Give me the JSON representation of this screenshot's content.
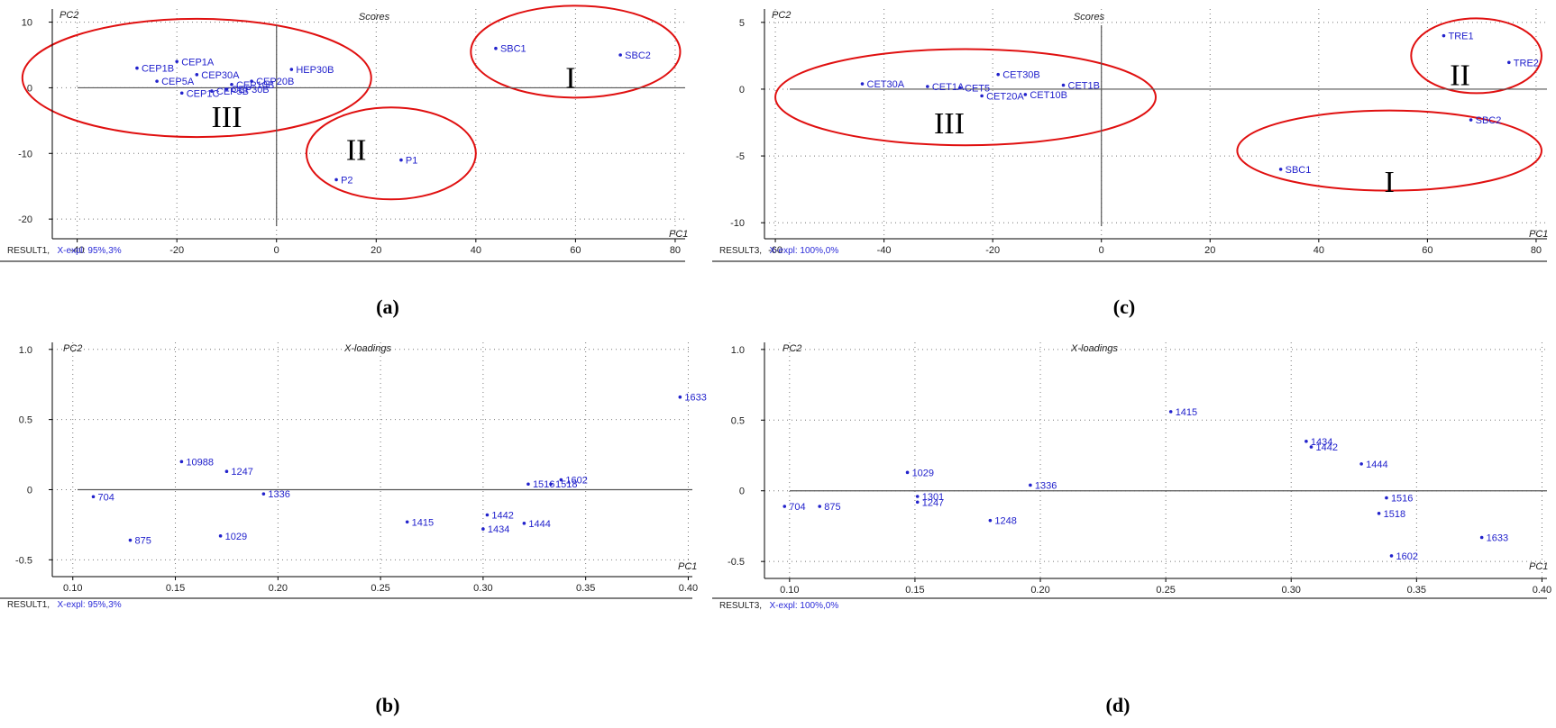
{
  "panels": [
    {
      "id": "a",
      "caption": "(a)",
      "title": "Scores",
      "ylabel": "PC2",
      "xlabel": "PC1",
      "footer_name": "RESULT1,",
      "footer_expl": "X-expl: 95%,3%",
      "colors": {
        "points": "#2222cc",
        "ellipse": "#e01010"
      }
    },
    {
      "id": "b",
      "caption": "(b)",
      "title": "X-loadings",
      "ylabel": "PC2",
      "xlabel": "PC1",
      "footer_name": "RESULT1,",
      "footer_expl": "X-expl: 95%,3%",
      "colors": {
        "points": "#2222cc"
      }
    },
    {
      "id": "c",
      "caption": "(c)",
      "title": "Scores",
      "ylabel": "PC2",
      "xlabel": "PC1",
      "footer_name": "RESULT3,",
      "footer_expl": "X-expl: 100%,0%",
      "colors": {
        "points": "#2222cc",
        "ellipse": "#e01010"
      }
    },
    {
      "id": "d",
      "caption": "(d)",
      "title": "X-loadings",
      "ylabel": "PC2",
      "xlabel": "PC1",
      "footer_name": "RESULT3,",
      "footer_expl": "X-expl: 100%,0%",
      "colors": {
        "points": "#2222cc"
      }
    }
  ],
  "chart_data": [
    {
      "panel": "a",
      "type": "scatter",
      "title": "Scores",
      "xlabel": "PC1",
      "ylabel": "PC2",
      "xlim": [
        -45,
        82
      ],
      "ylim": [
        -23,
        12
      ],
      "xticks": [
        -40,
        -20,
        0,
        20,
        40,
        60,
        80
      ],
      "xtick_labels": [
        "-40",
        "-20",
        "0",
        "20",
        "40",
        "60",
        "80"
      ],
      "yticks": [
        -20,
        -10,
        0,
        10
      ],
      "ytick_labels": [
        "-20",
        "-10",
        "0",
        "10"
      ],
      "grid": true,
      "points": [
        {
          "label": "CEP1B",
          "x": -28,
          "y": 3
        },
        {
          "label": "CEP5A",
          "x": -24,
          "y": 1
        },
        {
          "label": "CEP1A",
          "x": -20,
          "y": 4
        },
        {
          "label": "CEP30A",
          "x": -16,
          "y": 2
        },
        {
          "label": "CEP20B",
          "x": -5,
          "y": 1
        },
        {
          "label": "HEP30B",
          "x": 3,
          "y": 2.8
        },
        {
          "label": "CEP10B",
          "x": -9,
          "y": 0.5
        },
        {
          "label": "CEP1C",
          "x": -19,
          "y": -0.8
        },
        {
          "label": "CEP5B",
          "x": -13,
          "y": -0.5
        },
        {
          "label": "CEP30B",
          "x": -10,
          "y": -0.2
        },
        {
          "label": "SBC1",
          "x": 44,
          "y": 6
        },
        {
          "label": "SBC2",
          "x": 69,
          "y": 5
        },
        {
          "label": "P1",
          "x": 25,
          "y": -11
        },
        {
          "label": "P2",
          "x": 12,
          "y": -14
        }
      ],
      "groups": [
        {
          "label": "I",
          "cx": 60,
          "cy": 5.5,
          "rx": 21,
          "ry": 7
        },
        {
          "label": "II",
          "cx": 23,
          "cy": -10,
          "rx": 17,
          "ry": 7
        },
        {
          "label": "III",
          "cx": -16,
          "cy": 1.5,
          "rx": 35,
          "ry": 9
        }
      ],
      "group_label_pos": [
        {
          "label": "I",
          "x": 59,
          "y": 0
        },
        {
          "label": "II",
          "x": 16,
          "y": -11
        },
        {
          "label": "III",
          "x": -10,
          "y": -6
        }
      ]
    },
    {
      "panel": "b",
      "type": "scatter",
      "title": "X-loadings",
      "xlabel": "PC1",
      "ylabel": "PC2",
      "xlim": [
        0.09,
        0.402
      ],
      "ylim": [
        -0.62,
        1.05
      ],
      "xticks": [
        0.1,
        0.15,
        0.2,
        0.25,
        0.3,
        0.35,
        0.4
      ],
      "xtick_labels": [
        "0.10",
        "0.15",
        "0.20",
        "0.25",
        "0.30",
        "0.35",
        "0.40"
      ],
      "yticks": [
        -0.5,
        0,
        0.5,
        1.0
      ],
      "ytick_labels": [
        "-0.5",
        "0",
        "0.5",
        "1.0"
      ],
      "grid": true,
      "points": [
        {
          "label": "704",
          "x": 0.11,
          "y": -0.05
        },
        {
          "label": "875",
          "x": 0.128,
          "y": -0.36
        },
        {
          "label": "10988",
          "x": 0.153,
          "y": 0.2
        },
        {
          "label": "1247",
          "x": 0.175,
          "y": 0.13
        },
        {
          "label": "1336",
          "x": 0.193,
          "y": -0.03
        },
        {
          "label": "1029",
          "x": 0.172,
          "y": -0.33
        },
        {
          "label": "1415",
          "x": 0.263,
          "y": -0.23
        },
        {
          "label": "1442",
          "x": 0.302,
          "y": -0.18
        },
        {
          "label": "1434",
          "x": 0.3,
          "y": -0.28
        },
        {
          "label": "1444",
          "x": 0.32,
          "y": -0.24
        },
        {
          "label": "1516",
          "x": 0.322,
          "y": 0.04
        },
        {
          "label": "1518",
          "x": 0.333,
          "y": 0.04
        },
        {
          "label": "1602",
          "x": 0.338,
          "y": 0.07
        },
        {
          "label": "1633",
          "x": 0.396,
          "y": 0.66
        }
      ],
      "group_label_pos": []
    },
    {
      "panel": "c",
      "type": "scatter",
      "title": "Scores",
      "xlabel": "PC1",
      "ylabel": "PC2",
      "xlim": [
        -62,
        82
      ],
      "ylim": [
        -11.2,
        6
      ],
      "xticks": [
        -60,
        -40,
        -20,
        0,
        20,
        40,
        60,
        80
      ],
      "xtick_labels": [
        "-60",
        "-40",
        "-20",
        "0",
        "20",
        "40",
        "60",
        "80"
      ],
      "yticks": [
        -10,
        -5,
        0,
        5
      ],
      "ytick_labels": [
        "-10",
        "-5",
        "0",
        "5"
      ],
      "grid": true,
      "points": [
        {
          "label": "CET30A",
          "x": -44,
          "y": 0.4
        },
        {
          "label": "CET1A",
          "x": -32,
          "y": 0.2
        },
        {
          "label": "CET5",
          "x": -26,
          "y": 0.1
        },
        {
          "label": "CET30B",
          "x": -19,
          "y": 1.1
        },
        {
          "label": "CET1B",
          "x": -7,
          "y": 0.3
        },
        {
          "label": "CET20A",
          "x": -22,
          "y": -0.5
        },
        {
          "label": "CET10B",
          "x": -14,
          "y": -0.4
        },
        {
          "label": "TRE1",
          "x": 63,
          "y": 4
        },
        {
          "label": "TRE2",
          "x": 75,
          "y": 2
        },
        {
          "label": "SBC2",
          "x": 68,
          "y": -2.3
        },
        {
          "label": "SBC1",
          "x": 33,
          "y": -6
        }
      ],
      "groups": [
        {
          "label": "II",
          "cx": 69,
          "cy": 2.5,
          "rx": 12,
          "ry": 2.8
        },
        {
          "label": "I",
          "cx": 53,
          "cy": -4.6,
          "rx": 28,
          "ry": 3.0
        },
        {
          "label": "III",
          "cx": -25,
          "cy": -0.6,
          "rx": 35,
          "ry": 3.6
        }
      ],
      "group_label_pos": [
        {
          "label": "II",
          "x": 66,
          "y": 0.3
        },
        {
          "label": "I",
          "x": 53,
          "y": -7.7
        },
        {
          "label": "III",
          "x": -28,
          "y": -3.3
        }
      ]
    },
    {
      "panel": "d",
      "type": "scatter",
      "title": "X-loadings",
      "xlabel": "PC1",
      "ylabel": "PC2",
      "xlim": [
        0.09,
        0.402
      ],
      "ylim": [
        -0.62,
        1.05
      ],
      "xticks": [
        0.1,
        0.15,
        0.2,
        0.25,
        0.3,
        0.35,
        0.4
      ],
      "xtick_labels": [
        "0.10",
        "0.15",
        "0.20",
        "0.25",
        "0.30",
        "0.35",
        "0.40"
      ],
      "yticks": [
        -0.5,
        0,
        0.5,
        1.0
      ],
      "ytick_labels": [
        "-0.5",
        "0",
        "0.5",
        "1.0"
      ],
      "grid": true,
      "points": [
        {
          "label": "704",
          "x": 0.098,
          "y": -0.11
        },
        {
          "label": "875",
          "x": 0.112,
          "y": -0.11
        },
        {
          "label": "1029",
          "x": 0.147,
          "y": 0.13
        },
        {
          "label": "1301",
          "x": 0.151,
          "y": -0.04
        },
        {
          "label": "1247",
          "x": 0.151,
          "y": -0.08
        },
        {
          "label": "1336",
          "x": 0.196,
          "y": 0.04
        },
        {
          "label": "1248",
          "x": 0.18,
          "y": -0.21
        },
        {
          "label": "1415",
          "x": 0.252,
          "y": 0.56
        },
        {
          "label": "1434",
          "x": 0.306,
          "y": 0.35
        },
        {
          "label": "1442",
          "x": 0.308,
          "y": 0.31
        },
        {
          "label": "1444",
          "x": 0.328,
          "y": 0.19
        },
        {
          "label": "1516",
          "x": 0.338,
          "y": -0.05
        },
        {
          "label": "1518",
          "x": 0.335,
          "y": -0.16
        },
        {
          "label": "1602",
          "x": 0.34,
          "y": -0.46
        },
        {
          "label": "1633",
          "x": 0.376,
          "y": -0.33
        }
      ],
      "group_label_pos": []
    }
  ]
}
